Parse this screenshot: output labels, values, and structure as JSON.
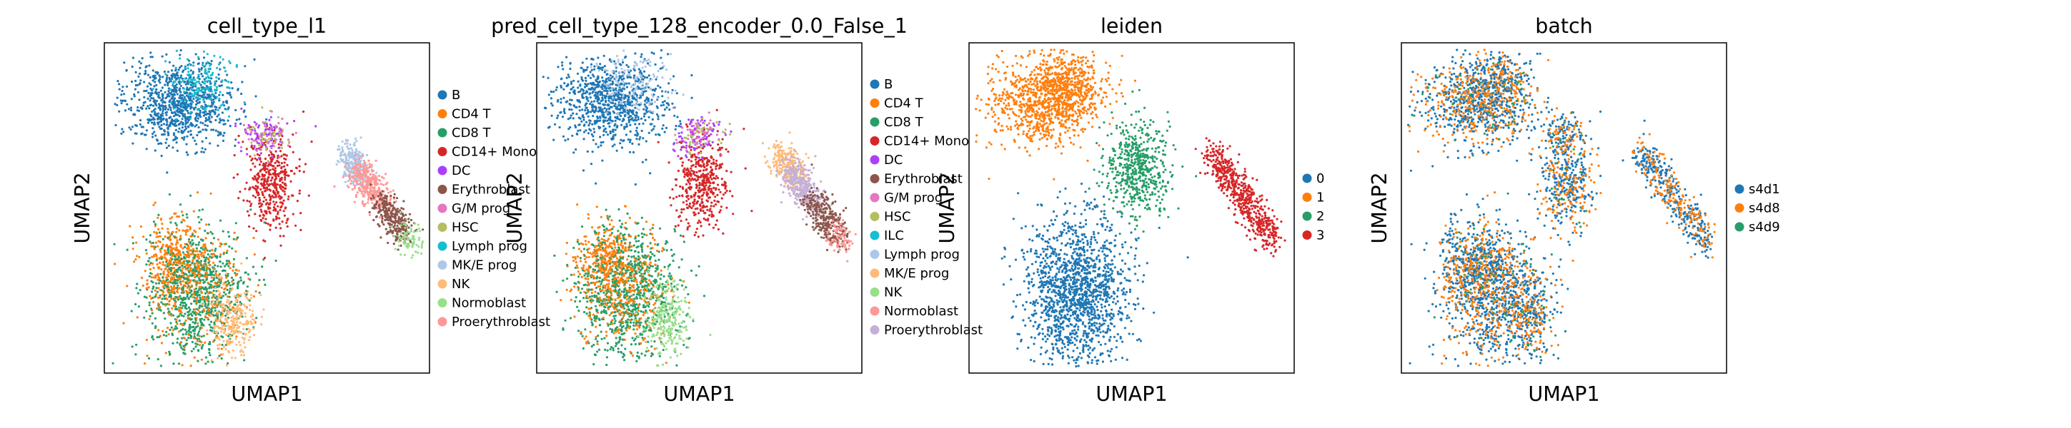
{
  "chart_data": [
    {
      "type": "scatter",
      "title": "cell_type_l1",
      "xlabel": "UMAP1",
      "ylabel": "UMAP2",
      "grid": false,
      "legend": "right",
      "series": [
        {
          "name": "B",
          "color": "#1f77b4"
        },
        {
          "name": "CD4 T",
          "color": "#ff7f0e"
        },
        {
          "name": "CD8 T",
          "color": "#279e68"
        },
        {
          "name": "CD14+ Mono",
          "color": "#d62728"
        },
        {
          "name": "DC",
          "color": "#aa40fc"
        },
        {
          "name": "Erythroblast",
          "color": "#8c564b"
        },
        {
          "name": "G/M prog",
          "color": "#e377c2"
        },
        {
          "name": "HSC",
          "color": "#b5bd61"
        },
        {
          "name": "Lymph prog",
          "color": "#17becf"
        },
        {
          "name": "MK/E prog",
          "color": "#aec7e8"
        },
        {
          "name": "NK",
          "color": "#ffbb78"
        },
        {
          "name": "Normoblast",
          "color": "#98df8a"
        },
        {
          "name": "Proerythroblast",
          "color": "#ff9896"
        }
      ]
    },
    {
      "type": "scatter",
      "title": "pred_cell_type_128_encoder_0.0_False_1",
      "xlabel": "UMAP1",
      "ylabel": "UMAP2",
      "grid": false,
      "legend": "right",
      "series": [
        {
          "name": "B",
          "color": "#1f77b4"
        },
        {
          "name": "CD4 T",
          "color": "#ff7f0e"
        },
        {
          "name": "CD8 T",
          "color": "#279e68"
        },
        {
          "name": "CD14+ Mono",
          "color": "#d62728"
        },
        {
          "name": "DC",
          "color": "#aa40fc"
        },
        {
          "name": "Erythroblast",
          "color": "#8c564b"
        },
        {
          "name": "G/M prog",
          "color": "#e377c2"
        },
        {
          "name": "HSC",
          "color": "#b5bd61"
        },
        {
          "name": "ILC",
          "color": "#17becf"
        },
        {
          "name": "Lymph prog",
          "color": "#aec7e8"
        },
        {
          "name": "MK/E prog",
          "color": "#ffbb78"
        },
        {
          "name": "NK",
          "color": "#98df8a"
        },
        {
          "name": "Normoblast",
          "color": "#ff9896"
        },
        {
          "name": "Proerythroblast",
          "color": "#c5b0d5"
        }
      ]
    },
    {
      "type": "scatter",
      "title": "leiden",
      "xlabel": "UMAP1",
      "ylabel": "UMAP2",
      "grid": false,
      "legend": "right",
      "series": [
        {
          "name": "0",
          "color": "#1f77b4"
        },
        {
          "name": "1",
          "color": "#ff7f0e"
        },
        {
          "name": "2",
          "color": "#279e68"
        },
        {
          "name": "3",
          "color": "#d62728"
        }
      ]
    },
    {
      "type": "scatter",
      "title": "batch",
      "xlabel": "UMAP1",
      "ylabel": "UMAP2",
      "grid": false,
      "legend": "right",
      "series": [
        {
          "name": "s4d1",
          "color": "#1f77b4"
        },
        {
          "name": "s4d8",
          "color": "#ff7f0e"
        },
        {
          "name": "s4d9",
          "color": "#279e68"
        }
      ]
    }
  ]
}
